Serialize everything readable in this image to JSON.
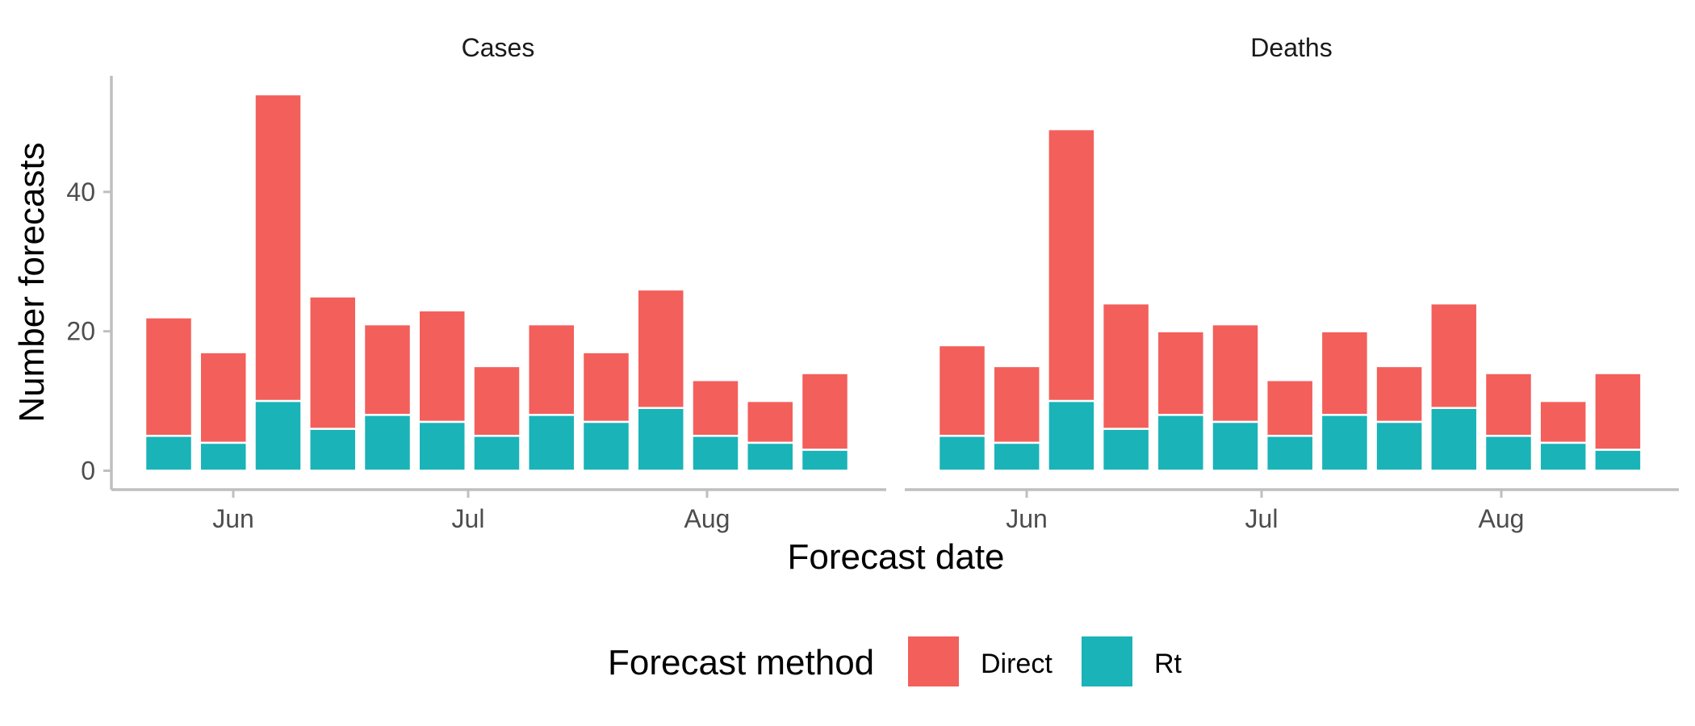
{
  "chart_data": {
    "type": "bar",
    "stacked": true,
    "xlabel": "Forecast date",
    "ylabel": "Number forecasts",
    "ylim": [
      0,
      55
    ],
    "y_ticks": [
      0,
      20,
      40
    ],
    "y_tick_labels": [
      "0",
      "20",
      "40"
    ],
    "x_ticks": [
      "Jun",
      "Jul",
      "Aug"
    ],
    "categories": [
      "2020-05-24",
      "2020-05-31",
      "2020-06-07",
      "2020-06-14",
      "2020-06-21",
      "2020-06-28",
      "2020-07-05",
      "2020-07-12",
      "2020-07-19",
      "2020-07-26",
      "2020-08-02",
      "2020-08-09",
      "2020-08-16"
    ],
    "legend": {
      "title": "Forecast method",
      "position": "bottom"
    },
    "grid": false,
    "colors": {
      "Direct": "#f35f5b",
      "Rt": "#1ab3b8"
    },
    "facets": [
      {
        "title": "Cases",
        "series": [
          {
            "name": "Rt",
            "values": [
              5,
              4,
              10,
              6,
              8,
              7,
              5,
              8,
              7,
              9,
              5,
              4,
              3
            ]
          },
          {
            "name": "Direct",
            "values": [
              17,
              13,
              44,
              19,
              13,
              16,
              10,
              13,
              10,
              17,
              8,
              6,
              11
            ]
          }
        ]
      },
      {
        "title": "Deaths",
        "series": [
          {
            "name": "Rt",
            "values": [
              5,
              4,
              10,
              6,
              8,
              7,
              5,
              8,
              7,
              9,
              5,
              4,
              3
            ]
          },
          {
            "name": "Direct",
            "values": [
              13,
              11,
              39,
              18,
              12,
              14,
              8,
              12,
              8,
              15,
              9,
              6,
              11
            ]
          }
        ]
      }
    ]
  }
}
